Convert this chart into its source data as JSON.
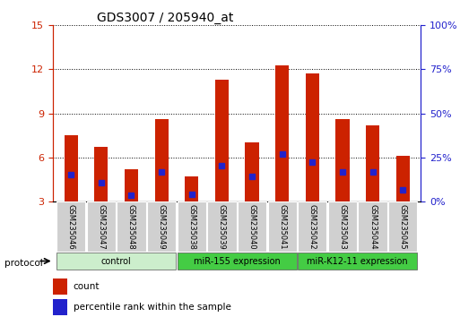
{
  "title": "GDS3007 / 205940_at",
  "samples": [
    "GSM235046",
    "GSM235047",
    "GSM235048",
    "GSM235049",
    "GSM235038",
    "GSM235039",
    "GSM235040",
    "GSM235041",
    "GSM235042",
    "GSM235043",
    "GSM235044",
    "GSM235045"
  ],
  "count_values": [
    7.5,
    6.7,
    5.2,
    8.6,
    4.7,
    11.3,
    7.0,
    12.3,
    11.7,
    8.6,
    8.2,
    6.1
  ],
  "percentile_values": [
    4.8,
    4.3,
    3.4,
    5.0,
    3.5,
    5.4,
    4.7,
    6.2,
    5.7,
    5.0,
    5.0,
    3.8
  ],
  "ylim_left": [
    3,
    15
  ],
  "yticks_left": [
    3,
    6,
    9,
    12,
    15
  ],
  "ylim_right": [
    0,
    100
  ],
  "yticks_right": [
    0,
    25,
    50,
    75,
    100
  ],
  "bar_color": "#cc2200",
  "percentile_color": "#2222cc",
  "bar_width": 0.45,
  "group_specs": [
    {
      "indices": [
        0,
        1,
        2,
        3
      ],
      "label": "control",
      "color": "#cceecc"
    },
    {
      "indices": [
        4,
        5,
        6,
        7
      ],
      "label": "miR-155 expression",
      "color": "#44cc44"
    },
    {
      "indices": [
        8,
        9,
        10,
        11
      ],
      "label": "miR-K12-11 expression",
      "color": "#44cc44"
    }
  ],
  "protocol_label": "protocol",
  "legend_count_label": "count",
  "legend_percentile_label": "percentile rank within the sample",
  "title_fontsize": 10,
  "axis_color_left": "#cc2200",
  "axis_color_right": "#2222cc"
}
